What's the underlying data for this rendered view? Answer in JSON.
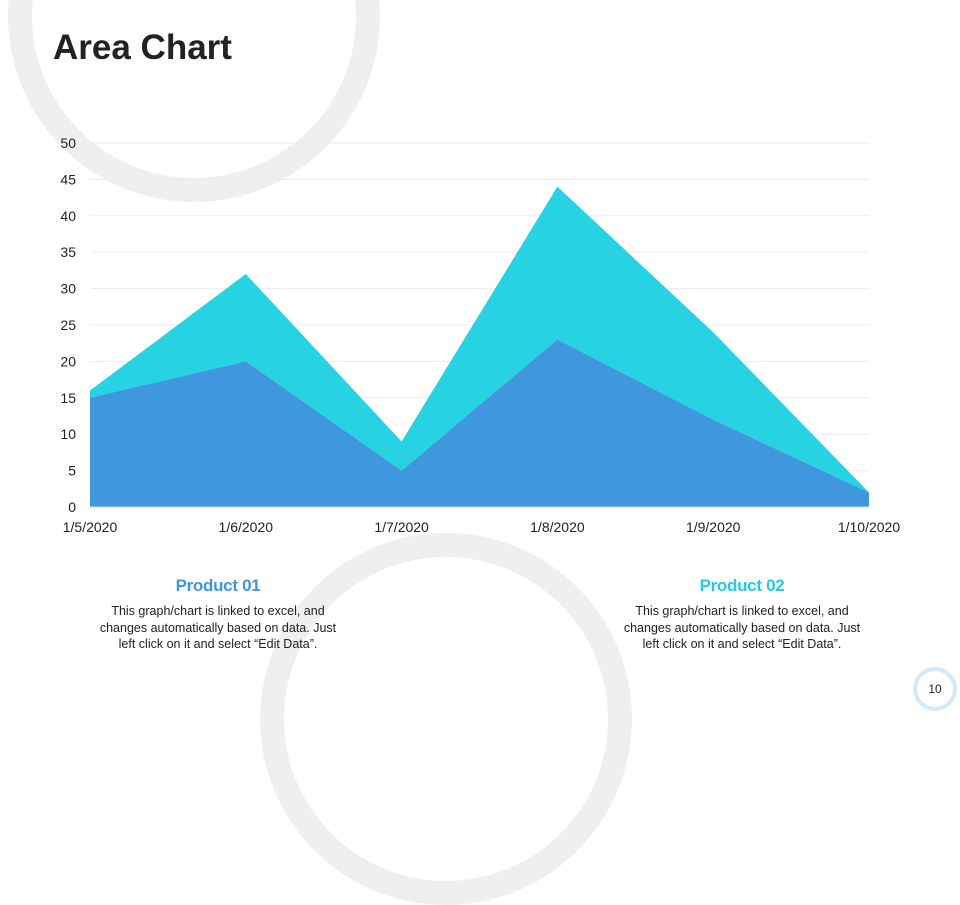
{
  "slide": {
    "title": "Area Chart",
    "page_number": "10"
  },
  "chart_data": {
    "type": "area",
    "stacked": true,
    "categories": [
      "1/5/2020",
      "1/6/2020",
      "1/7/2020",
      "1/8/2020",
      "1/9/2020",
      "1/10/2020"
    ],
    "series": [
      {
        "name": "Product 01",
        "values": [
          15,
          20,
          5,
          23,
          12,
          2
        ],
        "color": "#3f97de"
      },
      {
        "name": "Product 02",
        "values": [
          1,
          12,
          4,
          21,
          12,
          0
        ],
        "color": "#27d2e2"
      }
    ],
    "ylim": [
      0,
      50
    ],
    "yticks": [
      0,
      5,
      10,
      15,
      20,
      25,
      30,
      35,
      40,
      45,
      50
    ],
    "grid": true,
    "gridline_color": "#ececec",
    "title": "",
    "xlabel": "",
    "ylabel": ""
  },
  "products": [
    {
      "title": "Product 01",
      "text": "This graph/chart is linked to excel, and changes automatically based on data. Just left click on it and select “Edit Data”."
    },
    {
      "title": "Product 02",
      "text": "This graph/chart is linked to excel, and changes automatically based on data. Just left click on it and select “Edit Data”."
    }
  ]
}
